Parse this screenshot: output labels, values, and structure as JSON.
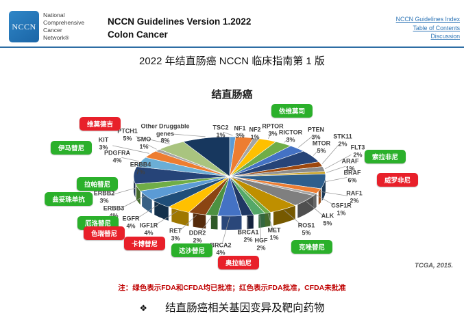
{
  "header": {
    "logo_text": "NCCN",
    "org_lines": [
      "National",
      "Comprehensive",
      "Cancer",
      "Network®"
    ],
    "title_line1": "NCCN Guidelines Version 1.2022",
    "title_line2": "Colon Cancer",
    "links": [
      "NCCN Guidelines Index",
      "Table of Contents",
      "Discussion"
    ]
  },
  "subtitle": "2022 年结直肠癌 NCCN 临床指南第 1 版",
  "chart_data": {
    "type": "pie",
    "title": "结直肠癌",
    "style": "3d-pie",
    "unit": "%",
    "source": "TCGA, 2015.",
    "slices": [
      {
        "gene": "TSC2",
        "pct": 1,
        "color": "#5B9BD5"
      },
      {
        "gene": "NF1",
        "pct": 3,
        "color": "#ED7D31"
      },
      {
        "gene": "NF2",
        "pct": 1,
        "color": "#A5A5A5"
      },
      {
        "gene": "RPTOR",
        "pct": 3,
        "color": "#FFC000"
      },
      {
        "gene": "RICTOR",
        "pct": 3,
        "color": "#70AD47"
      },
      {
        "gene": "PTEN",
        "pct": 3,
        "color": "#4472C4"
      },
      {
        "gene": "MTOR",
        "pct": 5,
        "color": "#264478"
      },
      {
        "gene": "STK11",
        "pct": 2,
        "color": "#9E480E"
      },
      {
        "gene": "FLT3",
        "pct": 2,
        "color": "#8C8C8C"
      },
      {
        "gene": "ARAF",
        "pct": 1,
        "color": "#C9A227"
      },
      {
        "gene": "BRAF",
        "pct": 6,
        "color": "#2E5E8C"
      },
      {
        "gene": "RAF1",
        "pct": 2,
        "color": "#ED7D31"
      },
      {
        "gene": "CSF1R",
        "pct": 1,
        "color": "#A5A5A5"
      },
      {
        "gene": "ALK",
        "pct": 5,
        "color": "#7F7F7F"
      },
      {
        "gene": "ROS1",
        "pct": 5,
        "color": "#BF8F00"
      },
      {
        "gene": "MET",
        "pct": 1,
        "color": "#70AD47"
      },
      {
        "gene": "HGF",
        "pct": 2,
        "color": "#55A868"
      },
      {
        "gene": "BRCA1",
        "pct": 2,
        "color": "#203864"
      },
      {
        "gene": "BRCA2",
        "pct": 4,
        "color": "#4472C4"
      },
      {
        "gene": "DDR2",
        "pct": 2,
        "color": "#4C9141"
      },
      {
        "gene": "RET",
        "pct": 3,
        "color": "#8B4513"
      },
      {
        "gene": "IGF1R",
        "pct": 4,
        "color": "#FFC000"
      },
      {
        "gene": "EGFR",
        "pct": 4,
        "color": "#1F4E79"
      },
      {
        "gene": "ERBB3",
        "pct": 4,
        "color": "#5B9BD5"
      },
      {
        "gene": "ERBB2",
        "pct": 3,
        "color": "#70AD47"
      },
      {
        "gene": "ERBB4",
        "pct": 7,
        "color": "#264478"
      },
      {
        "gene": "PDGFRA",
        "pct": 4,
        "color": "#6BAED6"
      },
      {
        "gene": "KIT",
        "pct": 3,
        "color": "#ED7D31"
      },
      {
        "gene": "SMO",
        "pct": 1,
        "color": "#A5A5A5"
      },
      {
        "gene": "PTCH1",
        "pct": 5,
        "color": "#A9C47F"
      },
      {
        "gene": "Other Druggable genes",
        "pct": 8,
        "color": "#17375E",
        "label_lines": [
          "Other Druggable",
          "genes"
        ]
      }
    ],
    "drugs": [
      {
        "name": "依维莫司",
        "approval": "green"
      },
      {
        "name": "维莫德吉",
        "approval": "red"
      },
      {
        "name": "伊马替尼",
        "approval": "green"
      },
      {
        "name": "拉帕替尼",
        "approval": "green"
      },
      {
        "name": "曲妥珠单抗",
        "approval": "green"
      },
      {
        "name": "厄洛替尼",
        "approval": "green"
      },
      {
        "name": "色瑞替尼",
        "approval": "red"
      },
      {
        "name": "卡博替尼",
        "approval": "red"
      },
      {
        "name": "达沙替尼",
        "approval": "green"
      },
      {
        "name": "奥拉帕尼",
        "approval": "red"
      },
      {
        "name": "克唑替尼",
        "approval": "green"
      },
      {
        "name": "威罗非尼",
        "approval": "red"
      },
      {
        "name": "索拉非尼",
        "approval": "green"
      }
    ],
    "legend_colors": {
      "green": "#2BB02B",
      "red": "#E8202A"
    }
  },
  "note": "注：绿色表示FDA和CFDA均已批准；红色表示FDA批准，CFDA未批准",
  "footer": {
    "marker": "❖",
    "text": "结直肠癌相关基因变异及靶向药物"
  }
}
